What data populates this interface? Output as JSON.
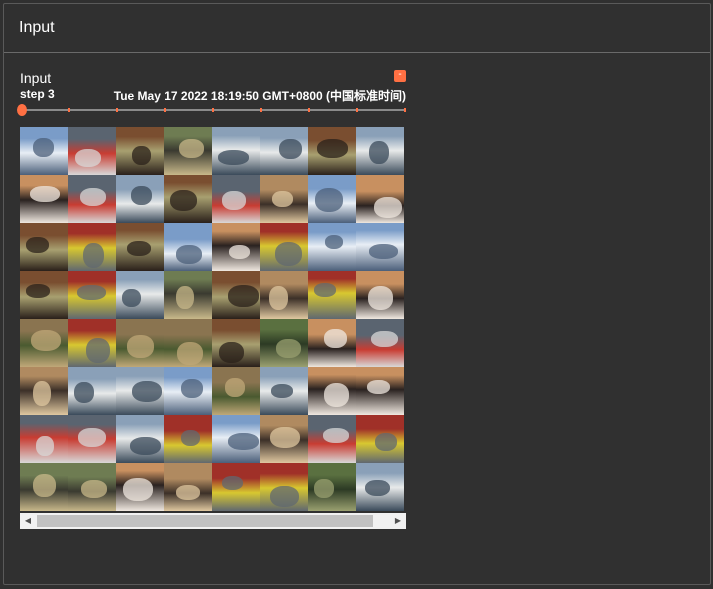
{
  "panel": {
    "title": "Input"
  },
  "card": {
    "title": "Input",
    "collapse_label": "-",
    "step_label": "step",
    "step_value": "3",
    "timestamp": "Tue May 17 2022 18:19:50 GMT+0800 (中国标准时间)"
  },
  "slider": {
    "ticks": 9,
    "position": 0
  },
  "grid": {
    "rows": 8,
    "cols": 8,
    "tiles": [
      [
        "airplane",
        "automobile",
        "horse",
        "bird",
        "ship",
        "ship",
        "horse",
        "ship"
      ],
      [
        "dog",
        "automobile",
        "ship",
        "horse",
        "automobile",
        "cat",
        "airplane",
        "dog"
      ],
      [
        "horse",
        "truck",
        "horse",
        "airplane",
        "dog",
        "truck",
        "airplane",
        "airplane"
      ],
      [
        "horse",
        "truck",
        "ship",
        "bird",
        "horse",
        "cat",
        "truck",
        "dog"
      ],
      [
        "deer",
        "truck",
        "deer",
        "deer",
        "horse",
        "frog",
        "dog",
        "automobile"
      ],
      [
        "cat",
        "ship",
        "ship",
        "airplane",
        "deer",
        "ship",
        "dog",
        "dog"
      ],
      [
        "automobile",
        "automobile",
        "ship",
        "truck",
        "airplane",
        "cat",
        "automobile",
        "truck"
      ],
      [
        "bird",
        "bird",
        "dog",
        "cat",
        "truck",
        "truck",
        "frog",
        "ship"
      ]
    ]
  },
  "scrollbar": {
    "left_arrow": "◀",
    "right_arrow": "▶"
  }
}
